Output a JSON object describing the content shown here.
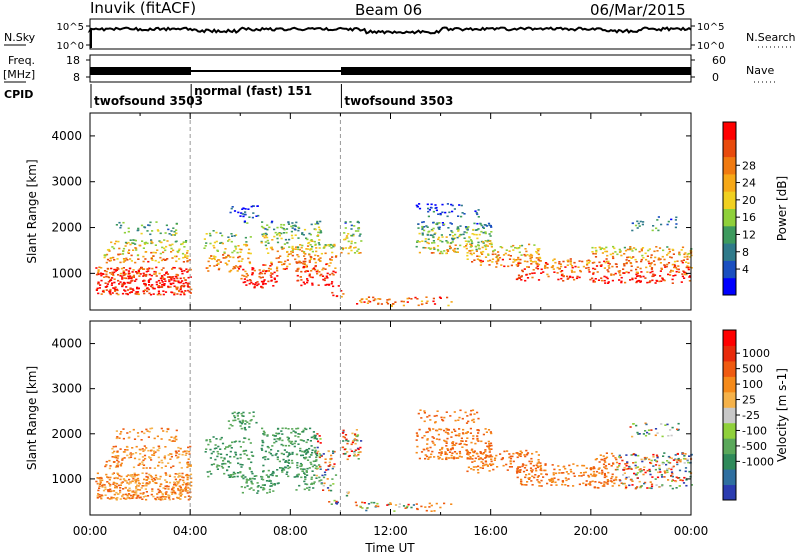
{
  "header": {
    "station": "Inuvik (fitACF)",
    "beam": "Beam 06",
    "date": "06/Mar/2015"
  },
  "left_labels": {
    "nsky": "N.Sky",
    "freq_line1": "Freq.",
    "freq_line2": "[MHz]",
    "cpid": "CPID"
  },
  "right_labels": {
    "nsearch": "N.Search",
    "nave": "Nave"
  },
  "axis_ticks": {
    "noise_left": [
      "10^5",
      "10^0"
    ],
    "noise_right": [
      "10^5",
      "10^0"
    ],
    "freq_left": [
      "18",
      "8"
    ],
    "freq_right": [
      "60",
      "0"
    ]
  },
  "cpid_segments": [
    {
      "label": "twofsound 3503",
      "start": 0,
      "end": 4
    },
    {
      "label": "normal (fast) 151",
      "start": 4,
      "end": 10
    },
    {
      "label": "twofsound 3503",
      "start": 10,
      "end": 24
    }
  ],
  "x_axis": {
    "label": "Time UT",
    "ticks": [
      "00:00",
      "04:00",
      "08:00",
      "12:00",
      "16:00",
      "20:00",
      "00:00"
    ]
  },
  "chart_data": [
    {
      "type": "heatmap",
      "name": "power-panel",
      "ylabel": "Slant Range [km]",
      "yticks": [
        1000,
        2000,
        3000,
        4000
      ],
      "ylim": [
        200,
        4500
      ],
      "xlim": [
        0,
        24
      ],
      "colorbar": {
        "label": "Power [dB]",
        "ticks": [
          "4",
          "8",
          "12",
          "16",
          "20",
          "24",
          "28"
        ],
        "colors": [
          "#0000ff",
          "#1a4fc0",
          "#2f7a8a",
          "#3d9a5e",
          "#8fd03a",
          "#f0d020",
          "#f6a817",
          "#f07a10",
          "#e84a0c",
          "#ff0000"
        ]
      }
    },
    {
      "type": "heatmap",
      "name": "velocity-panel",
      "ylabel": "Slant Range [km]",
      "yticks": [
        1000,
        2000,
        3000,
        4000
      ],
      "ylim": [
        200,
        4500
      ],
      "xlim": [
        0,
        24
      ],
      "colorbar": {
        "label": "Velocity [m s-1]",
        "ticks": [
          "1000",
          "500",
          "100",
          "25",
          "-25",
          "-100",
          "-500",
          "-1000"
        ],
        "colors": [
          "#2b3cb0",
          "#2f6fa0",
          "#2f8a5a",
          "#5aa85a",
          "#8fd03a",
          "#c8c8c8",
          "#f5b24a",
          "#f58a1a",
          "#ef5a10",
          "#e82a0a",
          "#ff0000"
        ]
      }
    }
  ]
}
